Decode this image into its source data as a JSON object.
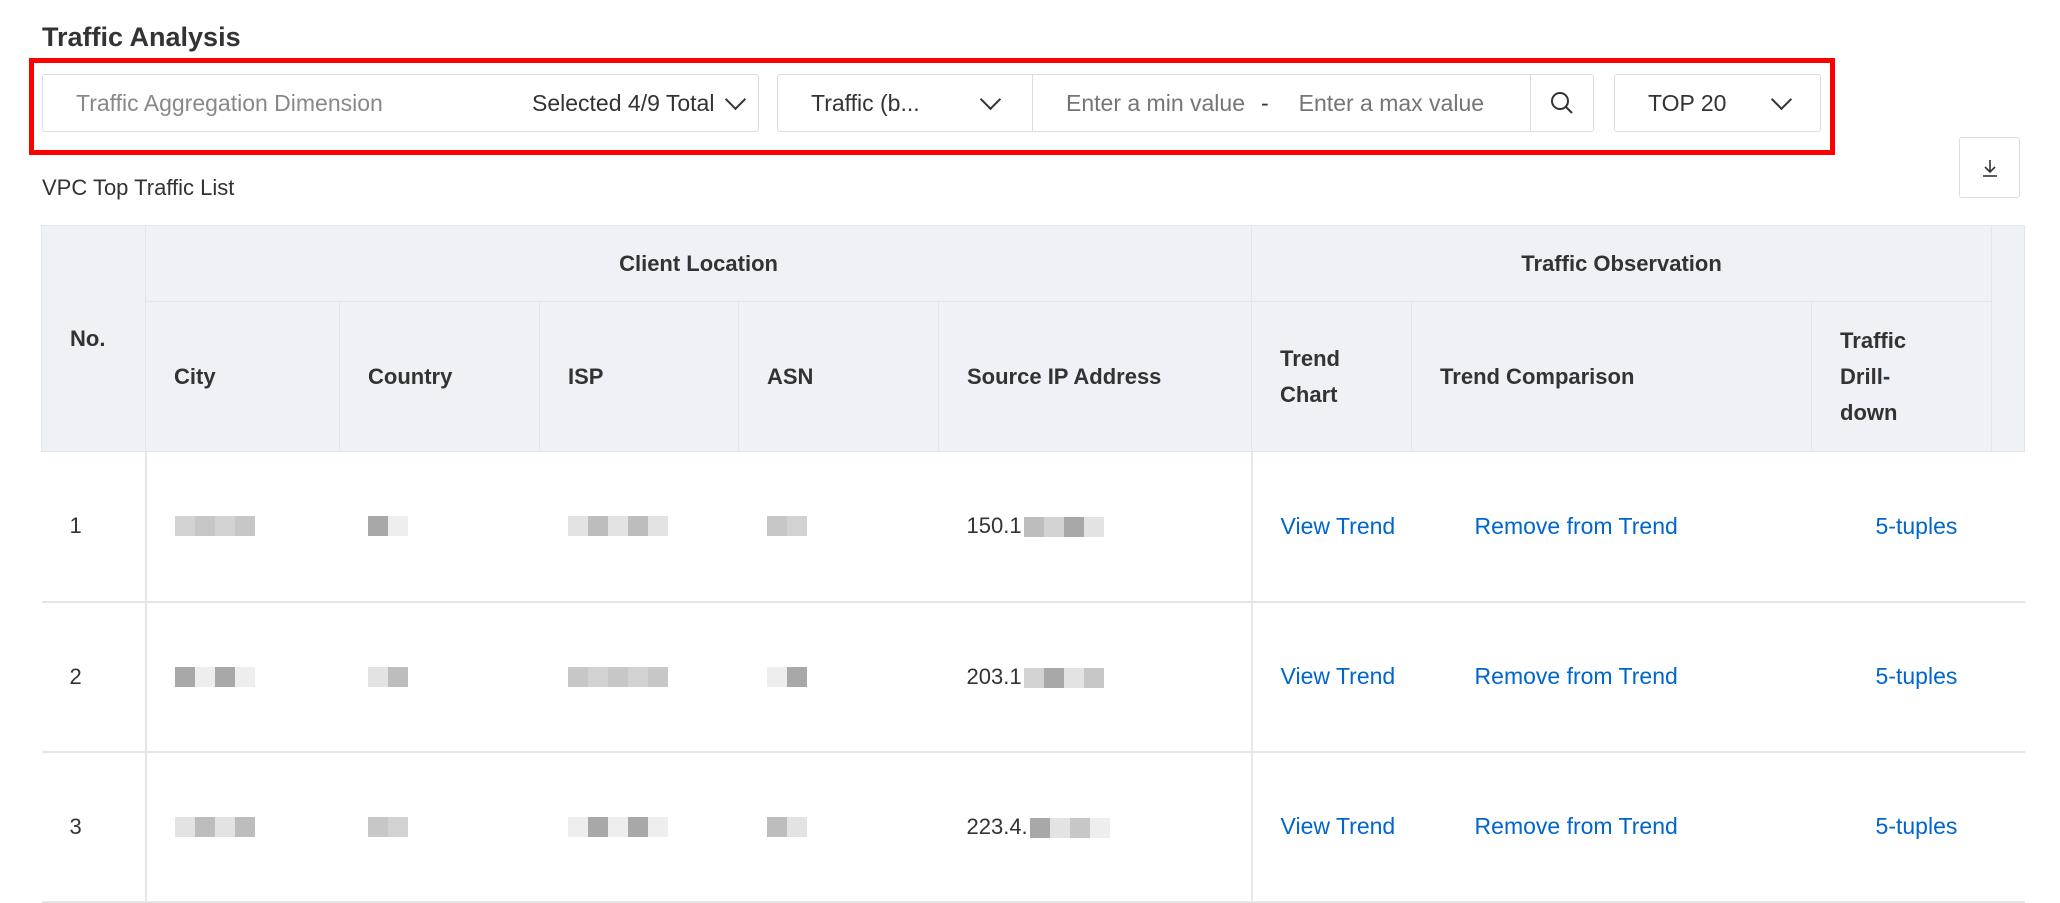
{
  "header": {
    "title": "Traffic Analysis"
  },
  "filters": {
    "aggregation_label": "Traffic Aggregation Dimension",
    "aggregation_value": "Selected 4/9 Total",
    "metric_value": "Traffic (b...",
    "min_placeholder": "Enter a min value",
    "range_separator": "-",
    "max_placeholder": "Enter a max value",
    "top_value": "TOP 20",
    "highlight_color": "#ff0000"
  },
  "list": {
    "title": "VPC Top Traffic List",
    "download_icon": "download-icon"
  },
  "table": {
    "group_headers": {
      "client": "Client Location",
      "observation": "Traffic Observation"
    },
    "columns": {
      "no": "No.",
      "city": "City",
      "country": "Country",
      "isp": "ISP",
      "asn": "ASN",
      "ip": "Source IP Address",
      "trend_chart": "Trend Chart",
      "trend_comparison": "Trend Comparison",
      "drilldown": "Traffic Drill-down"
    },
    "rows": [
      {
        "no": "1",
        "ip": "150.1",
        "view": "View Trend",
        "remove": "Remove from Trend",
        "tuples": "5-tuples"
      },
      {
        "no": "2",
        "ip": "203.1",
        "view": "View Trend",
        "remove": "Remove from Trend",
        "tuples": "5-tuples"
      },
      {
        "no": "3",
        "ip": "223.4.",
        "view": "View Trend",
        "remove": "Remove from Trend",
        "tuples": "5-tuples"
      }
    ],
    "link_color": "#0066cc",
    "header_bg": "#eef1f6"
  }
}
